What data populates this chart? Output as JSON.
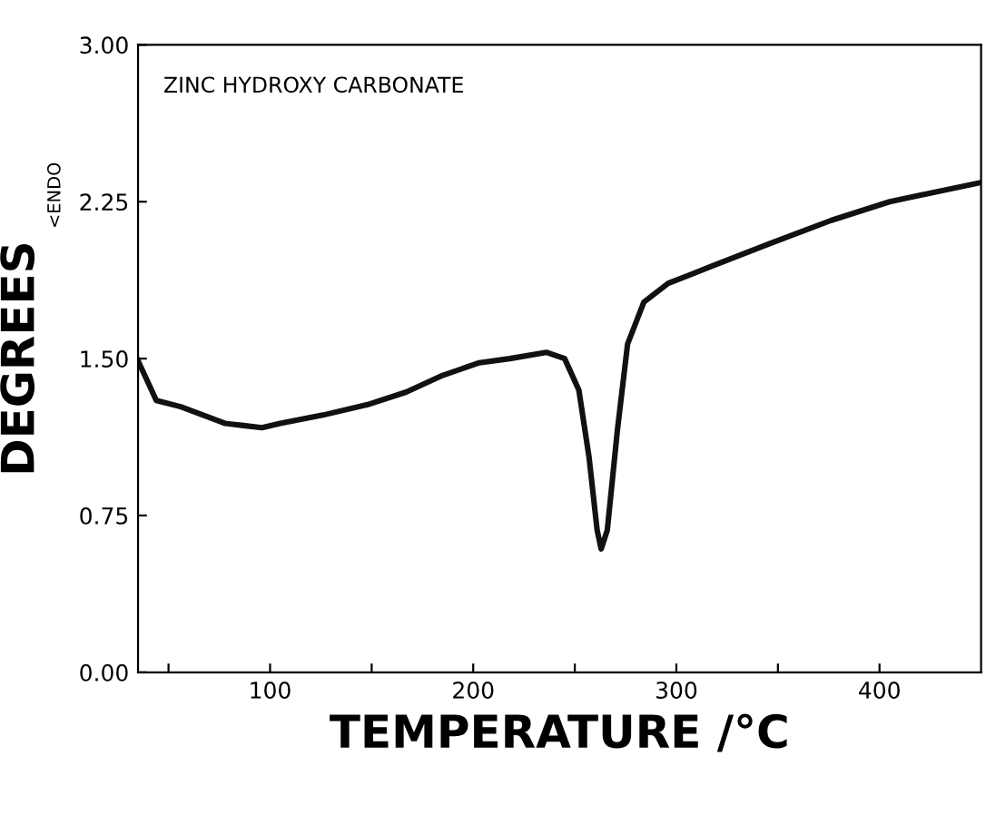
{
  "chart_data": {
    "type": "line",
    "xlabel": "TEMPERATURE /°C",
    "ylabel": "DEGREES",
    "annotations": [
      "ZINC HYDROXY CARBONATE",
      "<ENDO"
    ],
    "xlim": [
      35,
      450
    ],
    "ylim": [
      0,
      3
    ],
    "xticks": [
      {
        "value": 50,
        "label": null
      },
      100,
      {
        "value": 150,
        "label": null
      },
      200,
      {
        "value": 250,
        "label": null
      },
      300,
      {
        "value": 350,
        "label": null
      },
      400
    ],
    "yticks": [
      {
        "value": 0,
        "label": "0.00"
      },
      {
        "value": 0.75,
        "label": "0.75"
      },
      {
        "value": 1.5,
        "label": "1.50"
      },
      {
        "value": 2.25,
        "label": "2.25"
      },
      {
        "value": 3,
        "label": "3.00"
      }
    ],
    "grid": false,
    "legend": false,
    "series": [
      {
        "color": "#111111",
        "x": [
          35,
          44,
          56,
          78,
          87,
          96,
          105,
          126,
          148,
          167,
          185,
          203,
          218,
          236,
          245,
          252,
          257,
          261,
          263,
          266,
          271,
          276,
          284,
          296,
          317,
          346,
          376,
          405,
          449
        ],
        "values": [
          1.49,
          1.3,
          1.27,
          1.19,
          1.18,
          1.17,
          1.19,
          1.23,
          1.28,
          1.34,
          1.42,
          1.48,
          1.5,
          1.53,
          1.5,
          1.35,
          1.03,
          0.68,
          0.59,
          0.68,
          1.16,
          1.57,
          1.77,
          1.86,
          1.94,
          2.05,
          2.16,
          2.25,
          2.34
        ]
      }
    ]
  }
}
